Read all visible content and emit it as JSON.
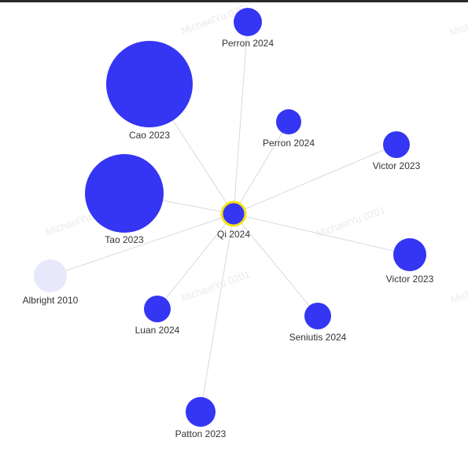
{
  "graph": {
    "colors": {
      "node_primary": "#3535f4",
      "node_faded": "#e8e8fb",
      "center_ring": "#f5e312",
      "edge": "#d9d9e0"
    },
    "watermark_text": "MichaelYu 0201",
    "center": {
      "label": "Qi 2024"
    },
    "nodes": [
      {
        "label": "Perron 2024",
        "style": "primary"
      },
      {
        "label": "Cao 2023",
        "style": "primary"
      },
      {
        "label": "Perron 2024",
        "style": "primary"
      },
      {
        "label": "Victor 2023",
        "style": "primary"
      },
      {
        "label": "Tao 2023",
        "style": "primary"
      },
      {
        "label": "Victor 2023",
        "style": "primary"
      },
      {
        "label": "Albright 2010",
        "style": "faded"
      },
      {
        "label": "Luan 2024",
        "style": "primary"
      },
      {
        "label": "Seniutis 2024",
        "style": "primary"
      },
      {
        "label": "Patton 2023",
        "style": "primary"
      }
    ]
  }
}
